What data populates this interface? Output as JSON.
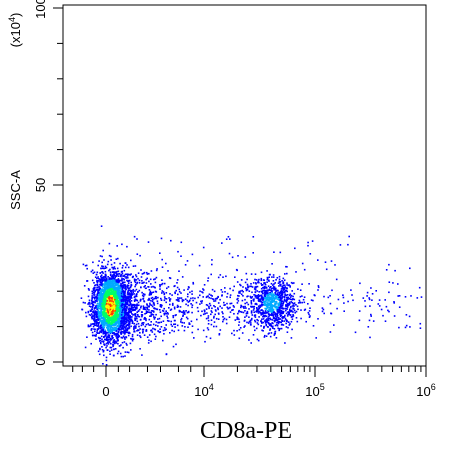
{
  "chart_data": {
    "type": "scatter",
    "style": "density-dot-plot",
    "xlabel": "CD8a-PE",
    "ylabel": "SSC-A",
    "y_multiplier": "(x10",
    "y_multiplier_exp": "4",
    "y_multiplier_close": ")",
    "x_scale": "biexponential",
    "y_scale": "linear",
    "xlim": [
      -2000,
      1000000
    ],
    "ylim": [
      0,
      100
    ],
    "x_ticks": [
      {
        "label": "0",
        "value": 0
      },
      {
        "label": "10",
        "exp": "4",
        "value": 10000
      },
      {
        "label": "10",
        "exp": "5",
        "value": 100000
      },
      {
        "label": "10",
        "exp": "6",
        "value": 1000000
      }
    ],
    "y_ticks": [
      {
        "label": "0",
        "value": 0
      },
      {
        "label": "50",
        "value": 50
      },
      {
        "label": "100",
        "value": 100
      }
    ],
    "density_colors": [
      "#0000ff",
      "#00aaff",
      "#00ff66",
      "#ffff00",
      "#ff3300"
    ],
    "populations": [
      {
        "name": "",
        "x_center": 100,
        "y_center": 16,
        "density": "high"
      },
      {
        "name": "",
        "x_center": 40000,
        "y_center": 17,
        "density": "medium"
      },
      {
        "name": "",
        "x_center": 5000,
        "y_center": 15,
        "density": "low"
      }
    ],
    "grid": false
  }
}
